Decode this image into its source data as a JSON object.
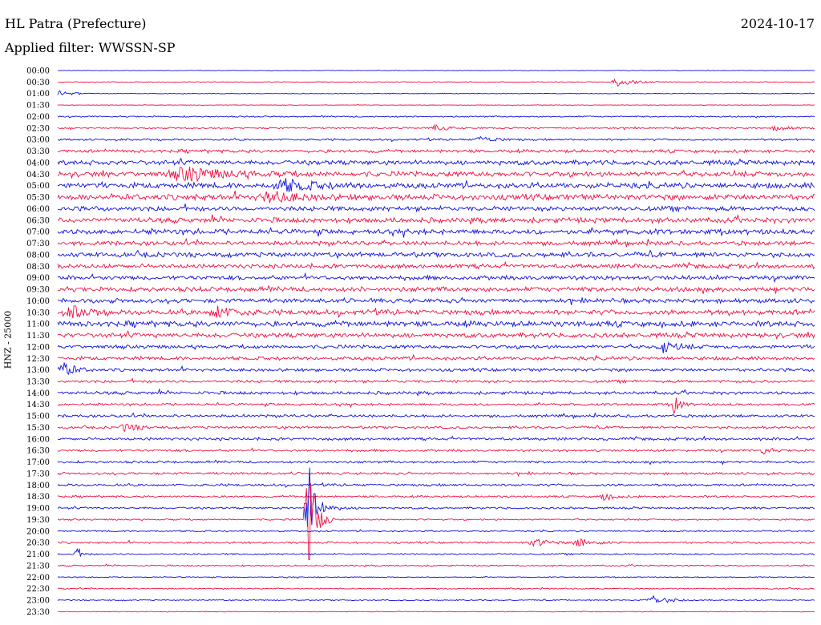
{
  "header": {
    "station": "HL Patra (Prefecture)",
    "filter": "Applied filter: WWSSN-SP",
    "date": "2024-10-17",
    "channel": "HNZ - 25000"
  },
  "colors": {
    "even_trace": "#1010dd",
    "odd_trace": "#ee1144"
  },
  "chart_data": {
    "type": "line",
    "title": "HL Patra (Prefecture)",
    "subtitle": "Applied filter: WWSSN-SP",
    "ylabel": "HNZ - 25000",
    "xlabel": "",
    "row_labels": [
      "00:00",
      "00:30",
      "01:00",
      "01:30",
      "02:00",
      "02:30",
      "03:00",
      "03:30",
      "04:00",
      "04:30",
      "05:00",
      "05:30",
      "06:00",
      "06:30",
      "07:00",
      "07:30",
      "08:00",
      "08:30",
      "09:00",
      "09:30",
      "10:00",
      "10:30",
      "11:00",
      "11:30",
      "12:00",
      "12:30",
      "13:00",
      "13:30",
      "14:00",
      "14:30",
      "15:00",
      "15:30",
      "16:00",
      "16:30",
      "17:00",
      "17:30",
      "18:00",
      "18:30",
      "19:00",
      "19:30",
      "20:00",
      "20:30",
      "21:00",
      "21:30",
      "22:00",
      "22:30",
      "23:00",
      "23:30"
    ],
    "row_noise": [
      0.3,
      0.4,
      0.4,
      0.3,
      0.7,
      0.8,
      1.0,
      1.6,
      2.4,
      2.6,
      2.8,
      3.0,
      2.4,
      2.6,
      2.6,
      2.2,
      2.4,
      2.2,
      2.2,
      2.4,
      2.2,
      2.6,
      2.8,
      2.4,
      1.8,
      1.8,
      1.6,
      1.4,
      1.6,
      1.2,
      1.4,
      1.2,
      1.4,
      1.2,
      1.2,
      1.2,
      1.2,
      1.0,
      1.0,
      0.8,
      0.8,
      1.0,
      0.8,
      0.7,
      0.5,
      0.6,
      0.6,
      0.4
    ],
    "events": [
      {
        "row": 1,
        "x": 0.74,
        "amp": 5,
        "width": 0.012
      },
      {
        "row": 2,
        "x": 0.005,
        "amp": 4,
        "width": 0.008
      },
      {
        "row": 5,
        "x": 0.5,
        "amp": 4,
        "width": 0.008
      },
      {
        "row": 5,
        "x": 0.95,
        "amp": 4,
        "width": 0.008
      },
      {
        "row": 6,
        "x": 0.56,
        "amp": 4,
        "width": 0.01
      },
      {
        "row": 9,
        "x": 0.17,
        "amp": 8,
        "width": 0.03
      },
      {
        "row": 10,
        "x": 0.3,
        "amp": 7,
        "width": 0.02
      },
      {
        "row": 11,
        "x": 0.28,
        "amp": 6,
        "width": 0.02
      },
      {
        "row": 21,
        "x": 0.02,
        "amp": 7,
        "width": 0.01
      },
      {
        "row": 21,
        "x": 0.21,
        "amp": 8,
        "width": 0.012
      },
      {
        "row": 24,
        "x": 0.8,
        "amp": 7,
        "width": 0.01
      },
      {
        "row": 26,
        "x": 0.008,
        "amp": 9,
        "width": 0.008
      },
      {
        "row": 29,
        "x": 0.815,
        "amp": 14,
        "width": 0.004
      },
      {
        "row": 31,
        "x": 0.09,
        "amp": 5,
        "width": 0.01
      },
      {
        "row": 33,
        "x": 0.93,
        "amp": 6,
        "width": 0.005
      },
      {
        "row": 37,
        "x": 0.72,
        "amp": 5,
        "width": 0.008
      },
      {
        "row": 38,
        "x": 0.33,
        "amp": 80,
        "width": 0.004
      },
      {
        "row": 38,
        "x": 0.345,
        "amp": 7,
        "width": 0.01
      },
      {
        "row": 39,
        "x": 0.33,
        "amp": 70,
        "width": 0.006
      },
      {
        "row": 41,
        "x": 0.63,
        "amp": 5,
        "width": 0.01
      },
      {
        "row": 41,
        "x": 0.69,
        "amp": 6,
        "width": 0.01
      },
      {
        "row": 42,
        "x": 0.025,
        "amp": 7,
        "width": 0.004
      },
      {
        "row": 46,
        "x": 0.785,
        "amp": 6,
        "width": 0.012
      }
    ]
  }
}
